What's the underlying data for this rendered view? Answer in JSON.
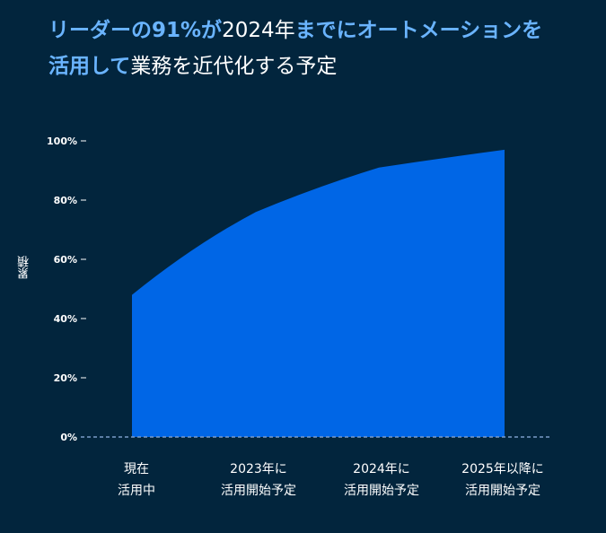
{
  "title": {
    "part1": "リーダーの91%が",
    "part2": "2024年",
    "part3": "までにオートメーションを",
    "part4": "活用して",
    "part5": "業務を近代化する予定"
  },
  "colors": {
    "background": "#02253d",
    "area": "#0066e6",
    "highlight": "#6ab4ff",
    "baseline": "#7a9cc8"
  },
  "chart_data": {
    "type": "area",
    "ylabel": "累積",
    "yticks": [
      "0%",
      "20%",
      "40%",
      "60%",
      "80%",
      "100%"
    ],
    "ylim": [
      0,
      100
    ],
    "categories": [
      [
        "現在",
        "活用中"
      ],
      [
        "2023年に",
        "活用開始予定"
      ],
      [
        "2024年に",
        "活用開始予定"
      ],
      [
        "2025年以降に",
        "活用開始予定"
      ]
    ],
    "values": [
      48,
      76,
      91,
      97
    ],
    "grid": false,
    "legend": "none"
  }
}
